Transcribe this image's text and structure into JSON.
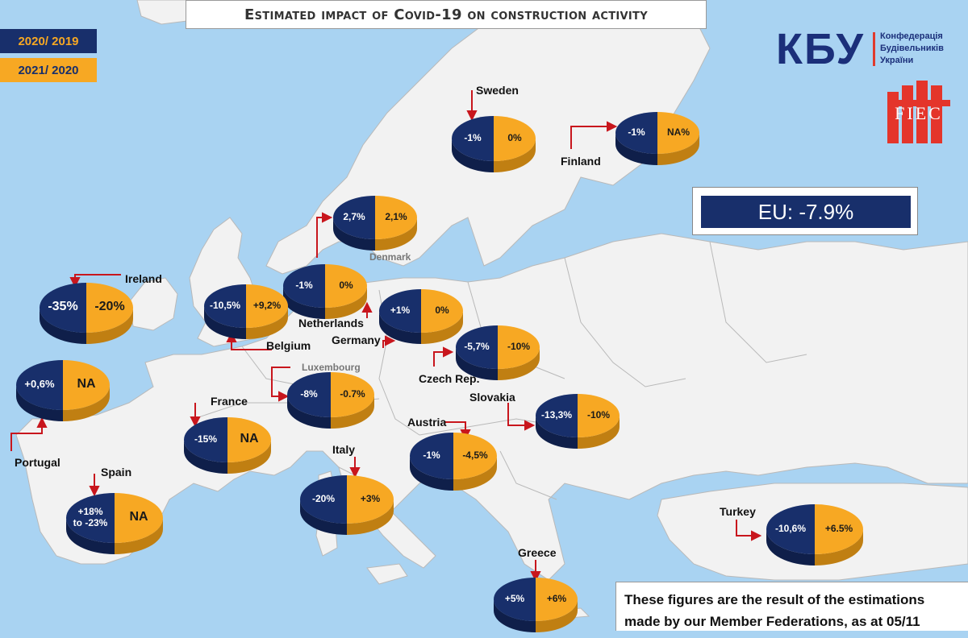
{
  "title": "Estimated impact of Covid-19 on construction activity",
  "legend": [
    {
      "label": "2020/ 2019",
      "color": "#182f6b"
    },
    {
      "label": "2021/ 2020",
      "color": "#f7a823"
    }
  ],
  "logo": {
    "mark": "КБУ",
    "line1": "Конфедерація",
    "line2": "Будівельників",
    "line3": "України"
  },
  "fiec_logo": "FIEC",
  "eu_total": "EU: -7.9%",
  "note": {
    "line1": "These figures are the result of the estimations",
    "line2": "made by our Member Federations, as at 05/11"
  },
  "colors": {
    "sea": "#a9d3f2",
    "land": "#f2f2f2",
    "navy": "#182f6b",
    "orange": "#f7a823",
    "arrow": "#c8161d"
  },
  "countries": [
    {
      "name": "Sweden",
      "v2020": "-1%",
      "v2021": "0%"
    },
    {
      "name": "Finland",
      "v2020": "-1%",
      "v2021": "NA%"
    },
    {
      "name": "Denmark",
      "v2020": "2,7%",
      "v2021": "2,1%"
    },
    {
      "name": "Ireland",
      "v2020": "-35%",
      "v2021": "-20%"
    },
    {
      "name": "Netherlands",
      "v2020": "-1%",
      "v2021": "0%"
    },
    {
      "name": "Belgium",
      "v2020": "-10,5%",
      "v2021": "+9,2%"
    },
    {
      "name": "Germany",
      "v2020": "+1%",
      "v2021": "0%"
    },
    {
      "name": "Czech Rep.",
      "v2020": "-5,7%",
      "v2021": "-10%"
    },
    {
      "name": "Luxembourg",
      "v2020": "-8%",
      "v2021": "-0.7%"
    },
    {
      "name": "Portugal",
      "v2020": "+0,6%",
      "v2021": "NA"
    },
    {
      "name": "France",
      "v2020": "-15%",
      "v2021": "NA"
    },
    {
      "name": "Slovakia",
      "v2020": "-13,3%",
      "v2021": "-10%"
    },
    {
      "name": "Austria",
      "v2020": "-1%",
      "v2021": "-4,5%"
    },
    {
      "name": "Spain",
      "v2020": "+18% to -23%",
      "v2020_line1": "+18%",
      "v2020_line2": "to -23%",
      "v2021": "NA"
    },
    {
      "name": "Italy",
      "v2020": "-20%",
      "v2021": "+3%"
    },
    {
      "name": "Turkey",
      "v2020": "-10,6%",
      "v2021": "+6.5%"
    },
    {
      "name": "Greece",
      "v2020": "+5%",
      "v2021": "+6%"
    }
  ]
}
